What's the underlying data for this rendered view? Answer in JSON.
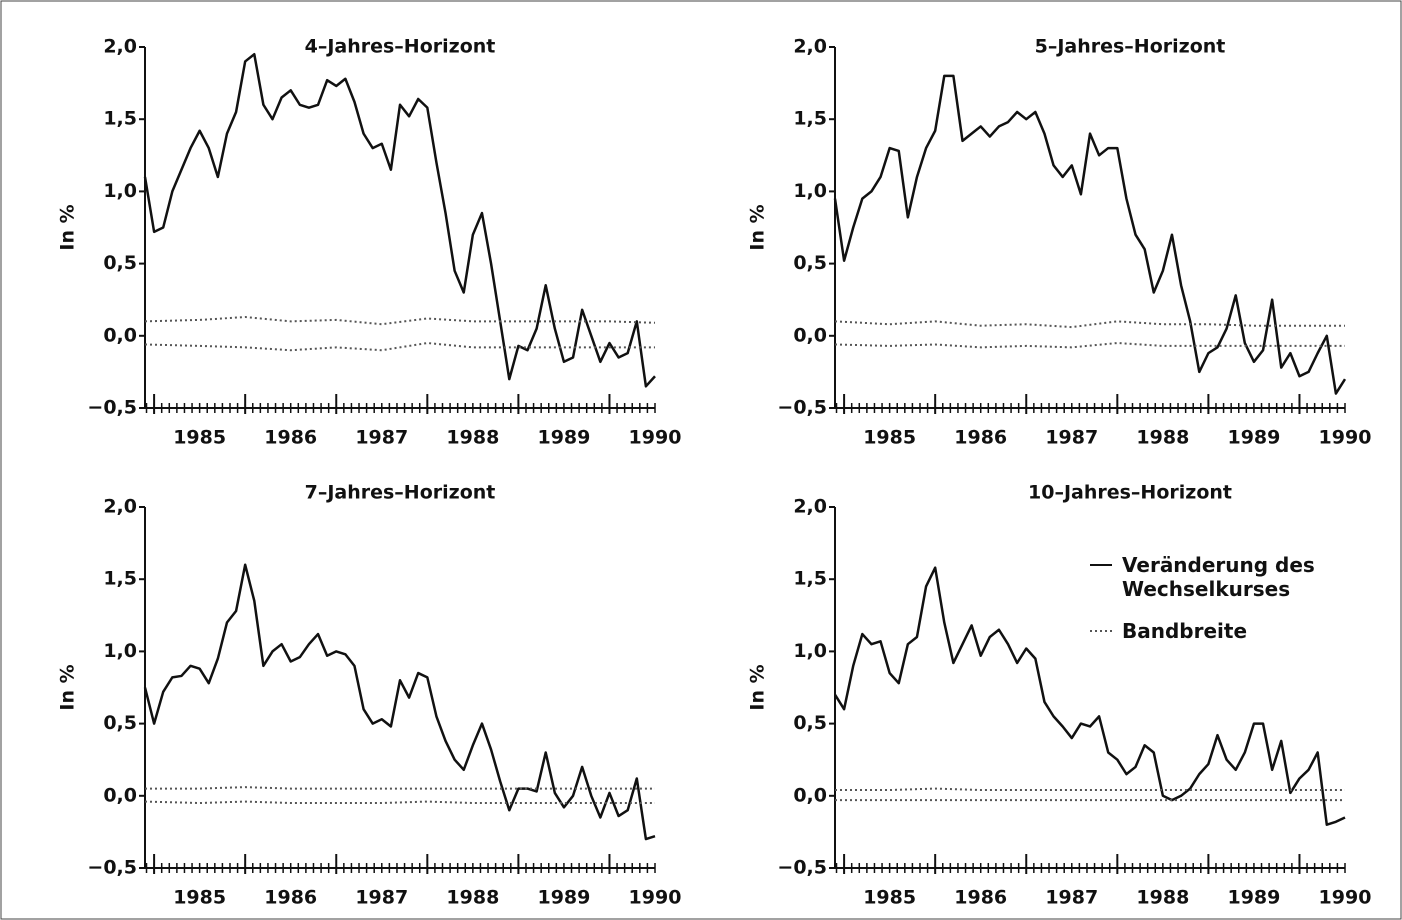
{
  "chart_data": [
    {
      "type": "line",
      "title": "4–Jahres–Horizont",
      "ylabel": "In %",
      "x": [
        1984.9,
        1985.0,
        1985.1,
        1985.2,
        1985.3,
        1985.4,
        1985.5,
        1985.6,
        1985.7,
        1985.8,
        1985.9,
        1986.0,
        1986.1,
        1986.2,
        1986.3,
        1986.4,
        1986.5,
        1986.6,
        1986.7,
        1986.8,
        1986.9,
        1987.0,
        1987.1,
        1987.2,
        1987.3,
        1987.4,
        1987.5,
        1987.6,
        1987.7,
        1987.8,
        1987.9,
        1988.0,
        1988.1,
        1988.2,
        1988.3,
        1988.4,
        1988.5,
        1988.6,
        1988.7,
        1988.8,
        1988.9,
        1989.0,
        1989.1,
        1989.2,
        1989.3,
        1989.4,
        1989.5,
        1989.6,
        1989.7,
        1989.8,
        1989.9,
        1990.0,
        1990.1,
        1990.2,
        1990.3,
        1990.4,
        1990.5
      ],
      "xlim": [
        1984.9,
        1990.5
      ],
      "xticks": [
        1985,
        1986,
        1987,
        1988,
        1989,
        1990
      ],
      "ylim": [
        -0.5,
        2
      ],
      "yticks": [
        {
          "value": -0.5,
          "label": "−0,5"
        },
        {
          "value": 0,
          "label": "0,0"
        },
        {
          "value": 0.5,
          "label": "0,5"
        },
        {
          "value": 1,
          "label": "1,0"
        },
        {
          "value": 1.5,
          "label": "1,5"
        },
        {
          "value": 2,
          "label": "2,0"
        }
      ],
      "series": [
        {
          "color": "#111111",
          "values": [
            1.1,
            0.72,
            0.75,
            1.0,
            1.15,
            1.3,
            1.42,
            1.3,
            1.1,
            1.4,
            1.55,
            1.9,
            1.95,
            1.6,
            1.5,
            1.65,
            1.7,
            1.6,
            1.58,
            1.6,
            1.77,
            1.73,
            1.78,
            1.62,
            1.4,
            1.3,
            1.33,
            1.15,
            1.6,
            1.52,
            1.64,
            1.58,
            1.2,
            0.85,
            0.45,
            0.3,
            0.7,
            0.85,
            0.5,
            0.1,
            -0.3,
            -0.07,
            -0.1,
            0.05,
            0.35,
            0.05,
            -0.18,
            -0.15,
            0.18,
            0,
            -0.18,
            -0.05,
            -0.15,
            -0.12,
            0.1,
            -0.35,
            -0.28
          ]
        },
        {
          "color": "#555555",
          "x": [
            1984.9,
            1985.5,
            1986.0,
            1986.5,
            1987.0,
            1987.5,
            1988.0,
            1988.5,
            1989.0,
            1989.5,
            1990.0,
            1990.5
          ],
          "values": [
            0.1,
            0.11,
            0.13,
            0.1,
            0.11,
            0.08,
            0.12,
            0.1,
            0.1,
            0.1,
            0.1,
            0.09
          ],
          "lower": [
            -0.06,
            -0.07,
            -0.08,
            -0.1,
            -0.08,
            -0.1,
            -0.05,
            -0.08,
            -0.08,
            -0.08,
            -0.08,
            -0.08
          ]
        }
      ]
    },
    {
      "type": "line",
      "title": "5–Jahres–Horizont",
      "ylabel": "In %",
      "x": [
        1984.9,
        1985.0,
        1985.1,
        1985.2,
        1985.3,
        1985.4,
        1985.5,
        1985.6,
        1985.7,
        1985.8,
        1985.9,
        1986.0,
        1986.1,
        1986.2,
        1986.3,
        1986.4,
        1986.5,
        1986.6,
        1986.7,
        1986.8,
        1986.9,
        1987.0,
        1987.1,
        1987.2,
        1987.3,
        1987.4,
        1987.5,
        1987.6,
        1987.7,
        1987.8,
        1987.9,
        1988.0,
        1988.1,
        1988.2,
        1988.3,
        1988.4,
        1988.5,
        1988.6,
        1988.7,
        1988.8,
        1988.9,
        1989.0,
        1989.1,
        1989.2,
        1989.3,
        1989.4,
        1989.5,
        1989.6,
        1989.7,
        1989.8,
        1989.9,
        1990.0,
        1990.1,
        1990.2,
        1990.3,
        1990.4,
        1990.5
      ],
      "xlim": [
        1984.9,
        1990.5
      ],
      "xticks": [
        1985,
        1986,
        1987,
        1988,
        1989,
        1990
      ],
      "ylim": [
        -0.5,
        2
      ],
      "yticks": [
        {
          "value": -0.5,
          "label": "−0,5"
        },
        {
          "value": 0,
          "label": "0,0"
        },
        {
          "value": 0.5,
          "label": "0,5"
        },
        {
          "value": 1,
          "label": "1,0"
        },
        {
          "value": 1.5,
          "label": "1,5"
        },
        {
          "value": 2,
          "label": "2,0"
        }
      ],
      "series": [
        {
          "color": "#111111",
          "values": [
            0.95,
            0.52,
            0.75,
            0.95,
            1.0,
            1.1,
            1.3,
            1.28,
            0.82,
            1.1,
            1.3,
            1.42,
            1.8,
            1.8,
            1.35,
            1.4,
            1.45,
            1.38,
            1.45,
            1.48,
            1.55,
            1.5,
            1.55,
            1.4,
            1.18,
            1.1,
            1.18,
            0.98,
            1.4,
            1.25,
            1.3,
            1.3,
            0.95,
            0.7,
            0.6,
            0.3,
            0.45,
            0.7,
            0.35,
            0.1,
            -0.25,
            -0.12,
            -0.08,
            0.05,
            0.28,
            -0.05,
            -0.18,
            -0.1,
            0.25,
            -0.22,
            -0.12,
            -0.28,
            -0.25,
            -0.12,
            0,
            -0.4,
            -0.3
          ]
        },
        {
          "color": "#555555",
          "x": [
            1984.9,
            1985.5,
            1986.0,
            1986.5,
            1987.0,
            1987.5,
            1988.0,
            1988.5,
            1989.0,
            1989.5,
            1990.0,
            1990.5
          ],
          "values": [
            0.1,
            0.08,
            0.1,
            0.07,
            0.08,
            0.06,
            0.1,
            0.08,
            0.08,
            0.07,
            0.07,
            0.07
          ],
          "lower": [
            -0.06,
            -0.07,
            -0.06,
            -0.08,
            -0.07,
            -0.08,
            -0.05,
            -0.07,
            -0.07,
            -0.07,
            -0.07,
            -0.07
          ]
        }
      ]
    },
    {
      "type": "line",
      "title": "7–Jahres–Horizont",
      "ylabel": "In %",
      "x": [
        1984.9,
        1985.0,
        1985.1,
        1985.2,
        1985.3,
        1985.4,
        1985.5,
        1985.6,
        1985.7,
        1985.8,
        1985.9,
        1986.0,
        1986.1,
        1986.2,
        1986.3,
        1986.4,
        1986.5,
        1986.6,
        1986.7,
        1986.8,
        1986.9,
        1987.0,
        1987.1,
        1987.2,
        1987.3,
        1987.4,
        1987.5,
        1987.6,
        1987.7,
        1987.8,
        1987.9,
        1988.0,
        1988.1,
        1988.2,
        1988.3,
        1988.4,
        1988.5,
        1988.6,
        1988.7,
        1988.8,
        1988.9,
        1989.0,
        1989.1,
        1989.2,
        1989.3,
        1989.4,
        1989.5,
        1989.6,
        1989.7,
        1989.8,
        1989.9,
        1990.0,
        1990.1,
        1990.2,
        1990.3,
        1990.4,
        1990.5
      ],
      "xlim": [
        1984.9,
        1990.5
      ],
      "xticks": [
        1985,
        1986,
        1987,
        1988,
        1989,
        1990
      ],
      "ylim": [
        -0.5,
        2
      ],
      "yticks": [
        {
          "value": -0.5,
          "label": "−0,5"
        },
        {
          "value": 0,
          "label": "0,0"
        },
        {
          "value": 0.5,
          "label": "0,5"
        },
        {
          "value": 1,
          "label": "1,0"
        },
        {
          "value": 1.5,
          "label": "1,5"
        },
        {
          "value": 2,
          "label": "2,0"
        }
      ],
      "series": [
        {
          "color": "#111111",
          "values": [
            0.75,
            0.5,
            0.72,
            0.82,
            0.83,
            0.9,
            0.88,
            0.78,
            0.95,
            1.2,
            1.28,
            1.6,
            1.35,
            0.9,
            1.0,
            1.05,
            0.93,
            0.96,
            1.05,
            1.12,
            0.97,
            1.0,
            0.98,
            0.9,
            0.6,
            0.5,
            0.53,
            0.48,
            0.8,
            0.68,
            0.85,
            0.82,
            0.55,
            0.38,
            0.25,
            0.18,
            0.35,
            0.5,
            0.32,
            0.1,
            -0.1,
            0.05,
            0.05,
            0.03,
            0.3,
            0.02,
            -0.08,
            0,
            0.2,
            0,
            -0.15,
            0.02,
            -0.14,
            -0.1,
            0.12,
            -0.3,
            -0.28
          ]
        },
        {
          "color": "#555555",
          "x": [
            1984.9,
            1985.5,
            1986.0,
            1986.5,
            1987.0,
            1987.5,
            1988.0,
            1988.5,
            1989.0,
            1989.5,
            1990.0,
            1990.5
          ],
          "values": [
            0.05,
            0.05,
            0.06,
            0.05,
            0.05,
            0.05,
            0.05,
            0.05,
            0.05,
            0.05,
            0.05,
            0.05
          ],
          "lower": [
            -0.04,
            -0.05,
            -0.04,
            -0.05,
            -0.05,
            -0.05,
            -0.04,
            -0.05,
            -0.05,
            -0.05,
            -0.05,
            -0.05
          ]
        }
      ]
    },
    {
      "type": "line",
      "title": "10–Jahres–Horizont",
      "ylabel": "In %",
      "legend": "right",
      "x": [
        1984.9,
        1985.0,
        1985.1,
        1985.2,
        1985.3,
        1985.4,
        1985.5,
        1985.6,
        1985.7,
        1985.8,
        1985.9,
        1986.0,
        1986.1,
        1986.2,
        1986.3,
        1986.4,
        1986.5,
        1986.6,
        1986.7,
        1986.8,
        1986.9,
        1987.0,
        1987.1,
        1987.2,
        1987.3,
        1987.4,
        1987.5,
        1987.6,
        1987.7,
        1987.8,
        1987.9,
        1988.0,
        1988.1,
        1988.2,
        1988.3,
        1988.4,
        1988.5,
        1988.6,
        1988.7,
        1988.8,
        1988.9,
        1989.0,
        1989.1,
        1989.2,
        1989.3,
        1989.4,
        1989.5,
        1989.6,
        1989.7,
        1989.8,
        1989.9,
        1990.0,
        1990.1,
        1990.2,
        1990.3,
        1990.4,
        1990.5
      ],
      "xlim": [
        1984.9,
        1990.5
      ],
      "xticks": [
        1985,
        1986,
        1987,
        1988,
        1989,
        1990
      ],
      "ylim": [
        -0.5,
        2
      ],
      "yticks": [
        {
          "value": -0.5,
          "label": "−0,5"
        },
        {
          "value": 0,
          "label": "0,0"
        },
        {
          "value": 0.5,
          "label": "0,5"
        },
        {
          "value": 1,
          "label": "1,0"
        },
        {
          "value": 1.5,
          "label": "1,5"
        },
        {
          "value": 2,
          "label": "2,0"
        }
      ],
      "series": [
        {
          "name": "Veränderung des Wechselkurses",
          "color": "#111111",
          "values": [
            0.7,
            0.6,
            0.9,
            1.12,
            1.05,
            1.07,
            0.85,
            0.78,
            1.05,
            1.1,
            1.45,
            1.58,
            1.2,
            0.92,
            1.05,
            1.18,
            0.97,
            1.1,
            1.15,
            1.05,
            0.92,
            1.02,
            0.95,
            0.65,
            0.55,
            0.48,
            0.4,
            0.5,
            0.48,
            0.55,
            0.3,
            0.25,
            0.15,
            0.2,
            0.35,
            0.3,
            0,
            -0.03,
            0,
            0.05,
            0.15,
            0.22,
            0.42,
            0.25,
            0.18,
            0.3,
            0.5,
            0.5,
            0.18,
            0.38,
            0.02,
            0.12,
            0.18,
            0.3,
            -0.2,
            -0.18,
            -0.15
          ]
        },
        {
          "name": "Bandbreite",
          "color": "#555555",
          "x": [
            1984.9,
            1985.5,
            1986.0,
            1986.5,
            1987.0,
            1987.5,
            1988.0,
            1988.5,
            1989.0,
            1989.5,
            1990.0,
            1990.5
          ],
          "values": [
            0.04,
            0.04,
            0.05,
            0.04,
            0.04,
            0.04,
            0.04,
            0.04,
            0.04,
            0.04,
            0.04,
            0.04
          ],
          "lower": [
            -0.03,
            -0.03,
            -0.03,
            -0.03,
            -0.03,
            -0.03,
            -0.03,
            -0.03,
            -0.03,
            -0.03,
            -0.03,
            -0.03
          ]
        }
      ]
    }
  ]
}
